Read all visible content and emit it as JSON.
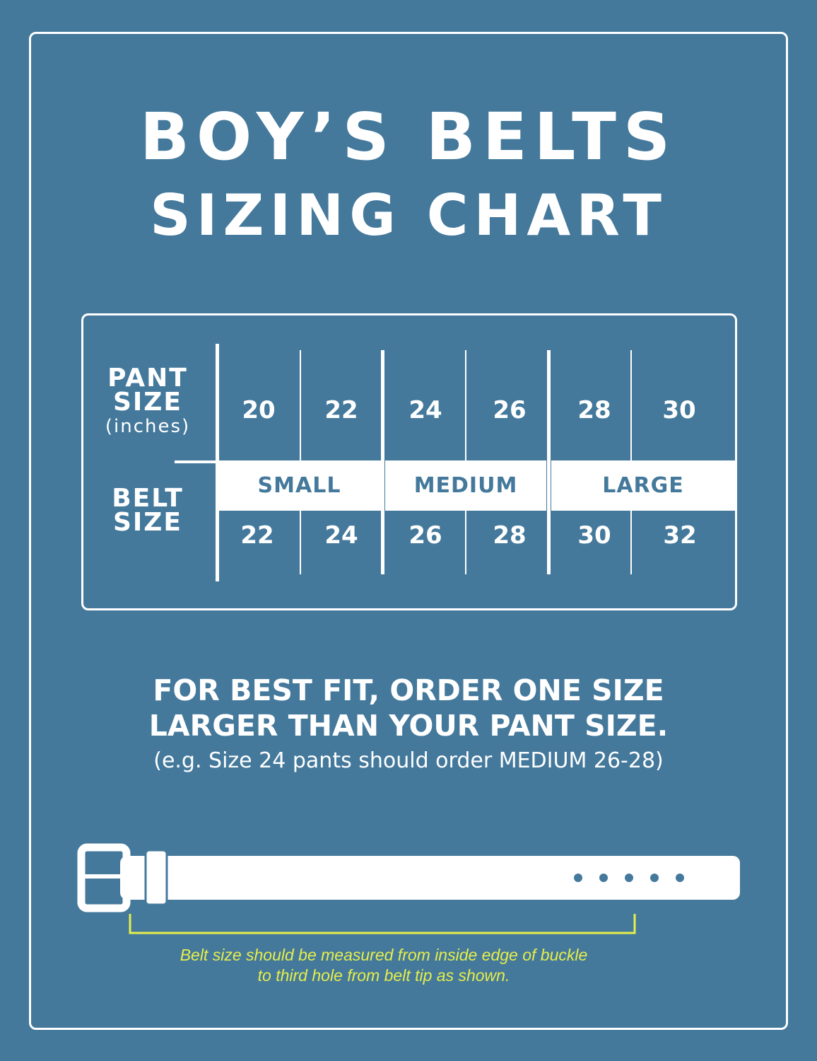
{
  "title": {
    "line1": "BOY’S BELTS",
    "line2": "SIZING CHART"
  },
  "table": {
    "pant_label": {
      "line1": "PANT",
      "line2": "SIZE",
      "unit": "(inches)"
    },
    "belt_label": {
      "line1": "BELT",
      "line2": "SIZE"
    },
    "pant_sizes": [
      "20",
      "22",
      "24",
      "26",
      "28",
      "30"
    ],
    "belt_groups": [
      "SMALL",
      "MEDIUM",
      "LARGE"
    ],
    "belt_sizes": [
      "22",
      "24",
      "26",
      "28",
      "30",
      "32"
    ]
  },
  "advice": {
    "line1": "FOR BEST FIT, ORDER ONE SIZE",
    "line2": "LARGER THAN YOUR PANT SIZE.",
    "example": "(e.g. Size 24 pants should order MEDIUM 26-28)"
  },
  "caption": {
    "line1": "Belt size should be measured from inside edge of buckle",
    "line2": "to third hole from belt tip as shown."
  },
  "colors": {
    "background": "#44799c",
    "foreground": "#ffffff",
    "accent": "#e6ee4a"
  }
}
